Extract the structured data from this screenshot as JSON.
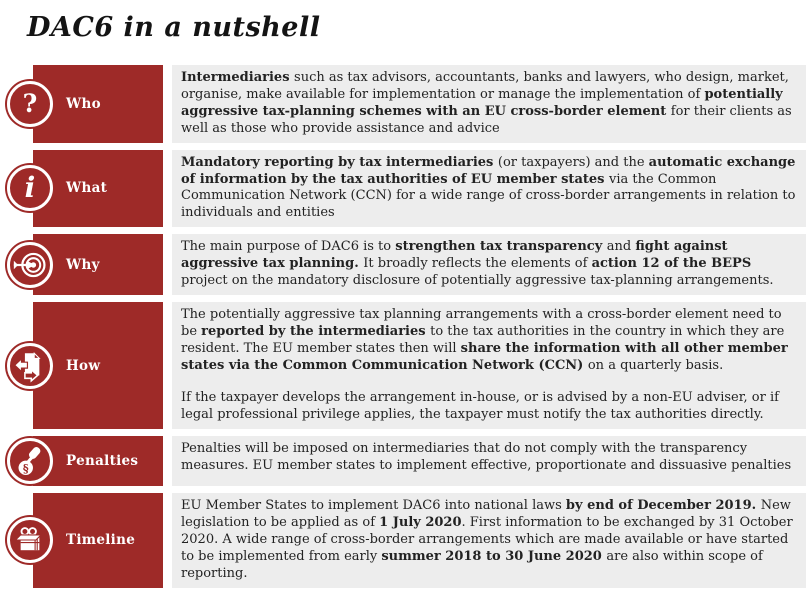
{
  "title": "DAC6 in a nutshell",
  "colors": {
    "accent_red": "#9e2a28",
    "content_bg": "#ededed",
    "text": "#222222",
    "label_text": "#ffffff"
  },
  "rows": [
    {
      "label": "Who",
      "icon": "question-icon",
      "glyph": "?",
      "paragraphs": [
        [
          {
            "t": "Intermediaries ",
            "b": true
          },
          {
            "t": "such as tax advisors, accountants, banks and lawyers, who design, market, organise, make available for implementation or manage the implementation of ",
            "b": false
          },
          {
            "t": "potentially aggressive tax-planning schemes with an EU cross-border element ",
            "b": true
          },
          {
            "t": "for their clients as well as those who provide assistance and advice",
            "b": false
          }
        ]
      ]
    },
    {
      "label": "What",
      "icon": "info-icon",
      "glyph": "i",
      "paragraphs": [
        [
          {
            "t": "Mandatory reporting by tax intermediaries ",
            "b": true
          },
          {
            "t": "(or taxpayers) and the ",
            "b": false
          },
          {
            "t": "automatic exchange of information by the tax authorities of EU member states ",
            "b": true
          },
          {
            "t": "via the Common Communication Network (CCN) for a wide range of cross-border arrangements in relation to individuals and entities",
            "b": false
          }
        ]
      ]
    },
    {
      "label": "Why",
      "icon": "target-icon",
      "glyph": "",
      "paragraphs": [
        [
          {
            "t": "The main purpose of DAC6 is to ",
            "b": false
          },
          {
            "t": "strengthen tax transparency ",
            "b": true
          },
          {
            "t": "and ",
            "b": false
          },
          {
            "t": "fight against aggressive tax planning. ",
            "b": true
          },
          {
            "t": "It broadly reflects the elements of ",
            "b": false
          },
          {
            "t": "action 12 of the BEPS ",
            "b": true
          },
          {
            "t": "project on the mandatory disclosure of potentially aggressive tax-planning arrangements.",
            "b": false
          }
        ]
      ]
    },
    {
      "label": "How",
      "icon": "document-exchange-icon",
      "glyph": "",
      "paragraphs": [
        [
          {
            "t": "The potentially aggressive tax planning  arrangements with a cross-border element need to be ",
            "b": false
          },
          {
            "t": "reported by the intermediaries ",
            "b": true
          },
          {
            "t": "to the tax authorities in the country in which they are resident. The EU member states then will ",
            "b": false
          },
          {
            "t": "share the information with all other member states via the Common Communication Network (CCN) ",
            "b": true
          },
          {
            "t": "on a quarterly basis.",
            "b": false
          }
        ],
        [
          {
            "t": "If the taxpayer develops the arrangement in-house, or is advised by a non-EU adviser, or if legal professional privilege applies, the taxpayer must notify the tax authorities directly.",
            "b": false
          }
        ]
      ]
    },
    {
      "label": "Penalties",
      "icon": "gavel-icon",
      "glyph": "",
      "paragraphs": [
        [
          {
            "t": "Penalties will be imposed on intermediaries that do not comply with the transparency measures. EU member states to implement effective, proportionate and dissuasive penalties",
            "b": false
          }
        ]
      ]
    },
    {
      "label": "Timeline",
      "icon": "calendar-icon",
      "glyph": "",
      "paragraphs": [
        [
          {
            "t": "EU Member States to implement DAC6 into national laws ",
            "b": false
          },
          {
            "t": "by end of December 2019. ",
            "b": true
          },
          {
            "t": "New legislation to be applied as of ",
            "b": false
          },
          {
            "t": "1 July 2020",
            "b": true
          },
          {
            "t": ". First information to be exchanged by 31 October 2020. A wide range of cross-border arrangements which are made available or have started to be implemented from early ",
            "b": false
          },
          {
            "t": "summer 2018 to 30 June 2020 ",
            "b": true
          },
          {
            "t": "are also within  scope of reporting.",
            "b": false
          }
        ]
      ]
    }
  ]
}
